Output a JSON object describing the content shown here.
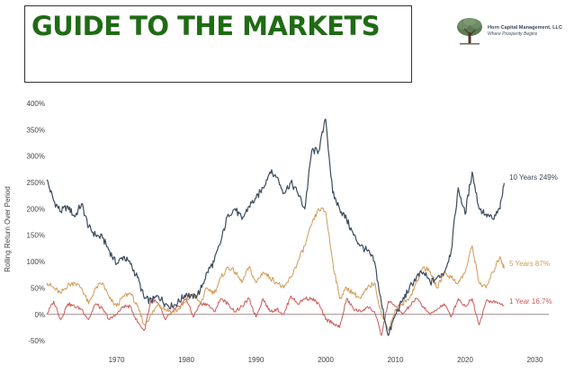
{
  "header": {
    "title": "GUIDE TO THE MARKETS"
  },
  "logo": {
    "name": "Horn Capital Management, LLC",
    "tagline": "Where Prosperity Begins",
    "icon": "tree-icon"
  },
  "colors": {
    "title": "#1f6b14",
    "ten_year": "#3b4a5c",
    "five_year": "#d19a55",
    "one_year": "#cc5a56",
    "zero_line": "#9a8c8c"
  },
  "chart_data": {
    "type": "line",
    "ylabel": "Rolling Return Over Period",
    "xlabel": "",
    "xlim": [
      1960,
      2032
    ],
    "ylim": [
      -60,
      400
    ],
    "x_ticks": [
      "1970",
      "1980",
      "1990",
      "2000",
      "2010",
      "2020",
      "2030"
    ],
    "y_ticks": [
      "400%",
      "350%",
      "300%",
      "250%",
      "200%",
      "150%",
      "100%",
      "50%",
      "0%",
      "-50%"
    ],
    "grid": false,
    "series": [
      {
        "name": "10 Years",
        "end_label": "10 Years 249%",
        "color": "#3b4a5c",
        "points": [
          [
            1960,
            255
          ],
          [
            1961,
            215
          ],
          [
            1962,
            195
          ],
          [
            1963,
            205
          ],
          [
            1964,
            185
          ],
          [
            1965,
            210
          ],
          [
            1966,
            165
          ],
          [
            1967,
            150
          ],
          [
            1968,
            145
          ],
          [
            1969,
            120
          ],
          [
            1970,
            95
          ],
          [
            1971,
            110
          ],
          [
            1972,
            95
          ],
          [
            1973,
            70
          ],
          [
            1974,
            30
          ],
          [
            1975,
            25
          ],
          [
            1976,
            35
          ],
          [
            1977,
            20
          ],
          [
            1978,
            15
          ],
          [
            1979,
            25
          ],
          [
            1980,
            40
          ],
          [
            1981,
            30
          ],
          [
            1982,
            45
          ],
          [
            1983,
            80
          ],
          [
            1984,
            100
          ],
          [
            1985,
            140
          ],
          [
            1986,
            190
          ],
          [
            1987,
            200
          ],
          [
            1988,
            180
          ],
          [
            1989,
            205
          ],
          [
            1990,
            220
          ],
          [
            1991,
            240
          ],
          [
            1992,
            270
          ],
          [
            1993,
            260
          ],
          [
            1994,
            230
          ],
          [
            1995,
            250
          ],
          [
            1996,
            230
          ],
          [
            1997,
            200
          ],
          [
            1998,
            310
          ],
          [
            1999,
            310
          ],
          [
            2000,
            370
          ],
          [
            2001,
            230
          ],
          [
            2002,
            200
          ],
          [
            2003,
            180
          ],
          [
            2004,
            150
          ],
          [
            2005,
            130
          ],
          [
            2006,
            120
          ],
          [
            2007,
            100
          ],
          [
            2008,
            20
          ],
          [
            2009,
            -40
          ],
          [
            2010,
            0
          ],
          [
            2011,
            25
          ],
          [
            2012,
            50
          ],
          [
            2013,
            70
          ],
          [
            2014,
            80
          ],
          [
            2015,
            60
          ],
          [
            2016,
            70
          ],
          [
            2017,
            80
          ],
          [
            2018,
            120
          ],
          [
            2019,
            240
          ],
          [
            2020,
            190
          ],
          [
            2021,
            270
          ],
          [
            2022,
            200
          ],
          [
            2023,
            190
          ],
          [
            2024,
            180
          ],
          [
            2025,
            200
          ],
          [
            2025.6,
            249
          ]
        ]
      },
      {
        "name": "5 Years",
        "end_label": "5 Years 87%",
        "color": "#d19a55",
        "points": [
          [
            1960,
            60
          ],
          [
            1961,
            50
          ],
          [
            1962,
            40
          ],
          [
            1963,
            55
          ],
          [
            1964,
            60
          ],
          [
            1965,
            50
          ],
          [
            1966,
            20
          ],
          [
            1967,
            50
          ],
          [
            1968,
            60
          ],
          [
            1969,
            30
          ],
          [
            1970,
            15
          ],
          [
            1971,
            35
          ],
          [
            1972,
            40
          ],
          [
            1973,
            15
          ],
          [
            1974,
            -20
          ],
          [
            1975,
            0
          ],
          [
            1976,
            20
          ],
          [
            1977,
            10
          ],
          [
            1978,
            5
          ],
          [
            1979,
            10
          ],
          [
            1980,
            25
          ],
          [
            1981,
            40
          ],
          [
            1982,
            20
          ],
          [
            1983,
            50
          ],
          [
            1984,
            40
          ],
          [
            1985,
            70
          ],
          [
            1986,
            90
          ],
          [
            1987,
            80
          ],
          [
            1988,
            60
          ],
          [
            1989,
            90
          ],
          [
            1990,
            60
          ],
          [
            1991,
            80
          ],
          [
            1992,
            70
          ],
          [
            1993,
            60
          ],
          [
            1994,
            50
          ],
          [
            1995,
            70
          ],
          [
            1996,
            100
          ],
          [
            1997,
            130
          ],
          [
            1998,
            170
          ],
          [
            1999,
            200
          ],
          [
            2000,
            195
          ],
          [
            2001,
            100
          ],
          [
            2002,
            30
          ],
          [
            2003,
            50
          ],
          [
            2004,
            40
          ],
          [
            2005,
            30
          ],
          [
            2006,
            50
          ],
          [
            2007,
            60
          ],
          [
            2008,
            0
          ],
          [
            2009,
            -30
          ],
          [
            2010,
            10
          ],
          [
            2011,
            20
          ],
          [
            2012,
            30
          ],
          [
            2013,
            60
          ],
          [
            2014,
            90
          ],
          [
            2015,
            80
          ],
          [
            2016,
            50
          ],
          [
            2017,
            80
          ],
          [
            2018,
            70
          ],
          [
            2019,
            60
          ],
          [
            2020,
            80
          ],
          [
            2021,
            130
          ],
          [
            2022,
            60
          ],
          [
            2023,
            50
          ],
          [
            2024,
            80
          ],
          [
            2025,
            110
          ],
          [
            2025.6,
            87
          ]
        ]
      },
      {
        "name": "1 Year",
        "end_label": "1 Year 16.7%",
        "color": "#cc5a56",
        "points": [
          [
            1960,
            0
          ],
          [
            1961,
            25
          ],
          [
            1962,
            -10
          ],
          [
            1963,
            20
          ],
          [
            1964,
            15
          ],
          [
            1965,
            10
          ],
          [
            1966,
            -10
          ],
          [
            1967,
            20
          ],
          [
            1968,
            10
          ],
          [
            1969,
            -10
          ],
          [
            1970,
            0
          ],
          [
            1971,
            15
          ],
          [
            1972,
            15
          ],
          [
            1973,
            -15
          ],
          [
            1974,
            -30
          ],
          [
            1975,
            30
          ],
          [
            1976,
            20
          ],
          [
            1977,
            -10
          ],
          [
            1978,
            5
          ],
          [
            1979,
            15
          ],
          [
            1980,
            30
          ],
          [
            1981,
            -5
          ],
          [
            1982,
            20
          ],
          [
            1983,
            20
          ],
          [
            1984,
            5
          ],
          [
            1985,
            30
          ],
          [
            1986,
            20
          ],
          [
            1987,
            5
          ],
          [
            1988,
            15
          ],
          [
            1989,
            30
          ],
          [
            1990,
            -5
          ],
          [
            1991,
            30
          ],
          [
            1992,
            5
          ],
          [
            1993,
            10
          ],
          [
            1994,
            0
          ],
          [
            1995,
            35
          ],
          [
            1996,
            20
          ],
          [
            1997,
            30
          ],
          [
            1998,
            30
          ],
          [
            1999,
            20
          ],
          [
            2000,
            -10
          ],
          [
            2001,
            -15
          ],
          [
            2002,
            -25
          ],
          [
            2003,
            30
          ],
          [
            2004,
            10
          ],
          [
            2005,
            5
          ],
          [
            2006,
            15
          ],
          [
            2007,
            5
          ],
          [
            2008,
            -40
          ],
          [
            2009,
            25
          ],
          [
            2010,
            15
          ],
          [
            2011,
            0
          ],
          [
            2012,
            15
          ],
          [
            2013,
            30
          ],
          [
            2014,
            15
          ],
          [
            2015,
            0
          ],
          [
            2016,
            10
          ],
          [
            2017,
            20
          ],
          [
            2018,
            -5
          ],
          [
            2019,
            30
          ],
          [
            2020,
            15
          ],
          [
            2021,
            30
          ],
          [
            2022,
            -20
          ],
          [
            2023,
            25
          ],
          [
            2024,
            25
          ],
          [
            2025,
            20
          ],
          [
            2025.6,
            16.7
          ]
        ]
      }
    ]
  }
}
